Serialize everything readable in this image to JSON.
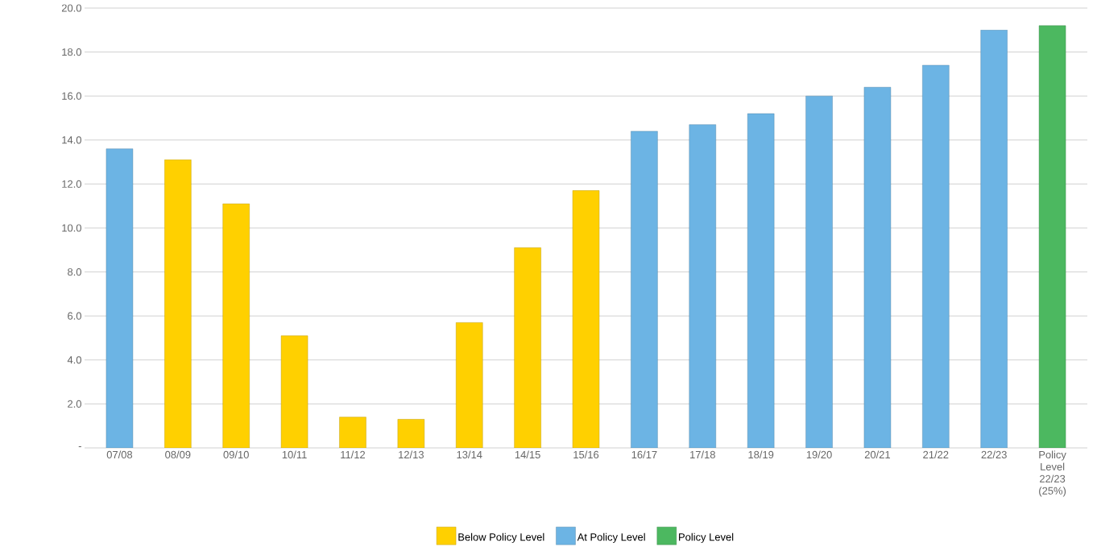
{
  "chart_data": {
    "type": "bar",
    "categories": [
      "07/08",
      "08/09",
      "09/10",
      "10/11",
      "11/12",
      "12/13",
      "13/14",
      "14/15",
      "15/16",
      "16/17",
      "17/18",
      "18/19",
      "19/20",
      "20/21",
      "21/22",
      "22/23",
      "Policy Level 22/23 (25%)"
    ],
    "series": [
      {
        "name": "Below Policy Level",
        "color": "#ffd000",
        "values": [
          null,
          13.1,
          11.1,
          5.1,
          1.4,
          1.3,
          5.7,
          9.1,
          11.7,
          null,
          null,
          null,
          null,
          null,
          null,
          null,
          null
        ]
      },
      {
        "name": "At Policy Level",
        "color": "#6cb4e4",
        "values": [
          13.6,
          null,
          null,
          null,
          null,
          null,
          null,
          null,
          null,
          14.4,
          14.7,
          15.2,
          16.0,
          16.4,
          17.4,
          19.0,
          null
        ]
      },
      {
        "name": "Policy Level",
        "color": "#4cb860",
        "values": [
          null,
          null,
          null,
          null,
          null,
          null,
          null,
          null,
          null,
          null,
          null,
          null,
          null,
          null,
          null,
          null,
          19.2
        ]
      }
    ],
    "ylim": [
      0,
      20
    ],
    "yticks": [
      {
        "value": 0,
        "label": "-"
      },
      {
        "value": 2,
        "label": "2.0"
      },
      {
        "value": 4,
        "label": "4.0"
      },
      {
        "value": 6,
        "label": "6.0"
      },
      {
        "value": 8,
        "label": "8.0"
      },
      {
        "value": 10,
        "label": "10.0"
      },
      {
        "value": 12,
        "label": "12.0"
      },
      {
        "value": 14,
        "label": "14.0"
      },
      {
        "value": 16,
        "label": "16.0"
      },
      {
        "value": 18,
        "label": "18.0"
      },
      {
        "value": 20,
        "label": "20.0"
      }
    ],
    "grid": "y",
    "legend": "bottom"
  }
}
